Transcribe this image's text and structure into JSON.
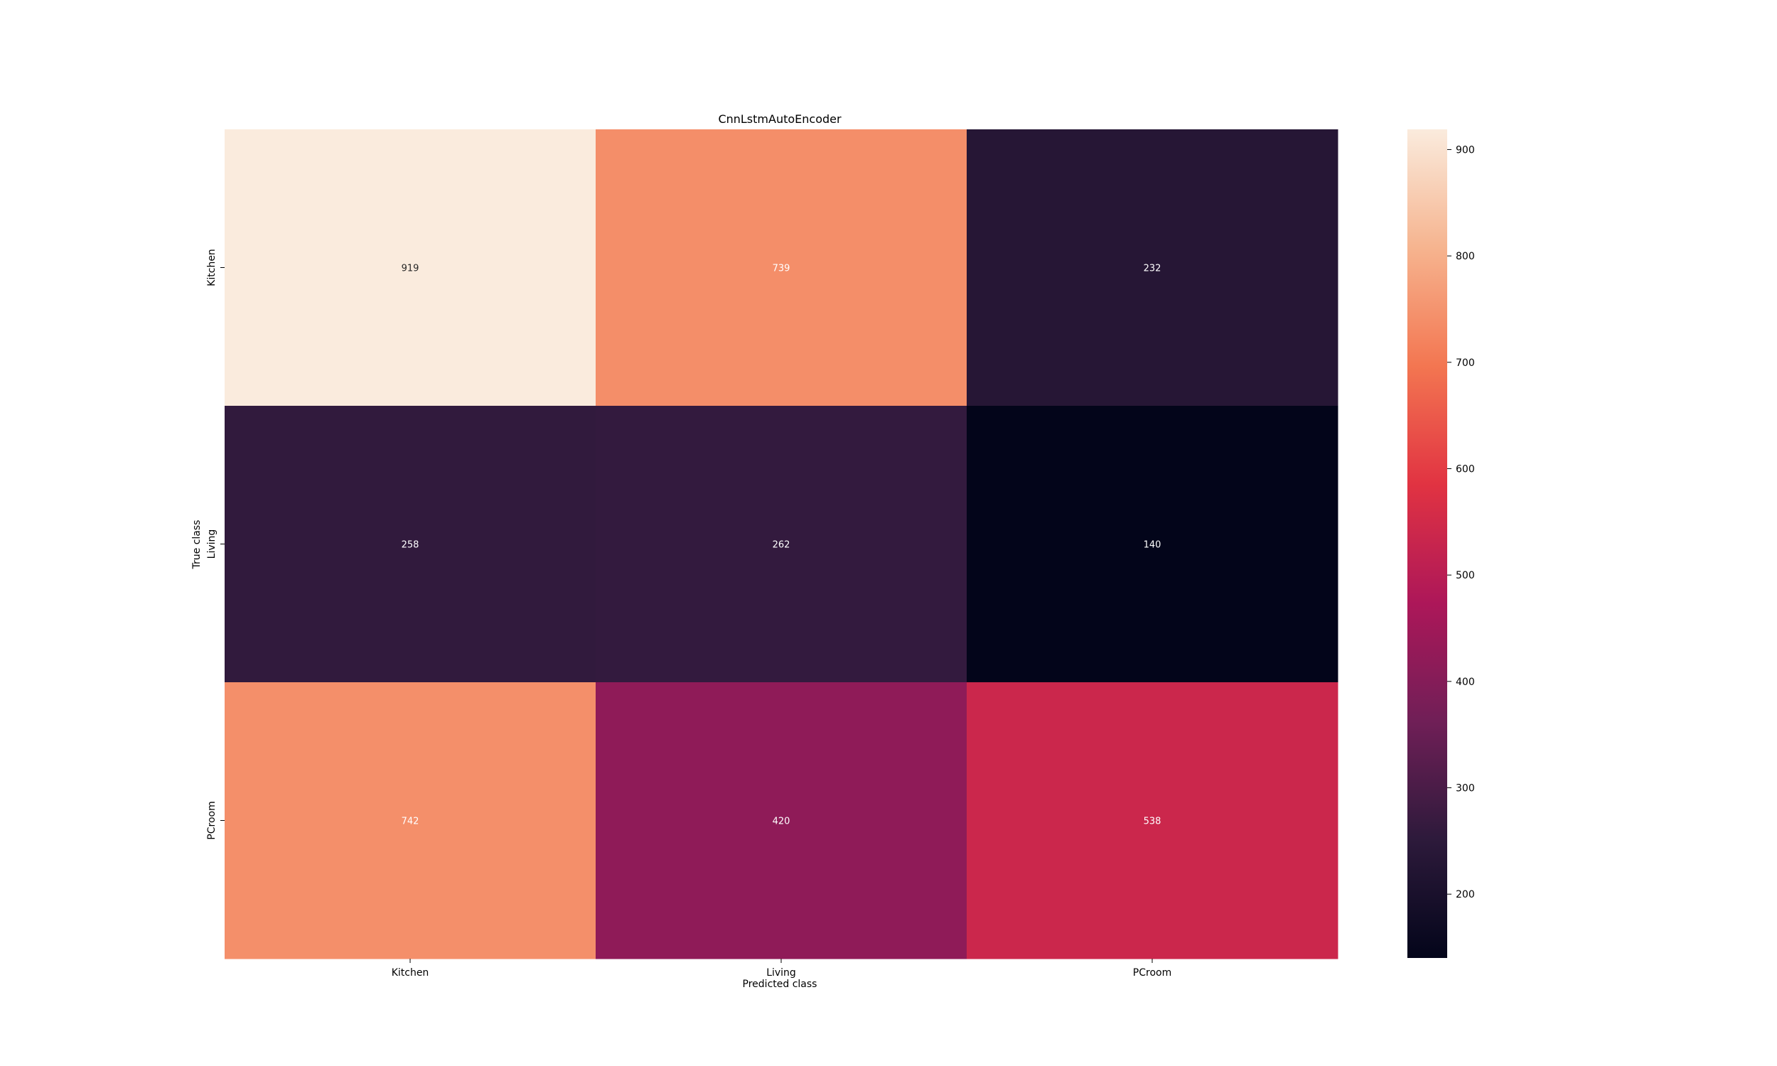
{
  "chart_data": {
    "type": "heatmap",
    "title": "CnnLstmAutoEncoder",
    "xlabel": "Predicted class",
    "ylabel": "True class",
    "x_categories": [
      "Kitchen",
      "Living",
      "PCroom"
    ],
    "y_categories": [
      "Kitchen",
      "Living",
      "PCroom"
    ],
    "values": [
      [
        919,
        739,
        232
      ],
      [
        258,
        262,
        140
      ],
      [
        742,
        420,
        538
      ]
    ],
    "colorbar": {
      "min": 140,
      "max": 919,
      "ticks": [
        200,
        300,
        400,
        500,
        600,
        700,
        800,
        900
      ],
      "colormap": "rocket",
      "stops": [
        "#03051a",
        "#2d1a3b",
        "#701f57",
        "#ad1759",
        "#e13342",
        "#f37651",
        "#f6b48f",
        "#faebdd"
      ]
    },
    "grid": false
  }
}
